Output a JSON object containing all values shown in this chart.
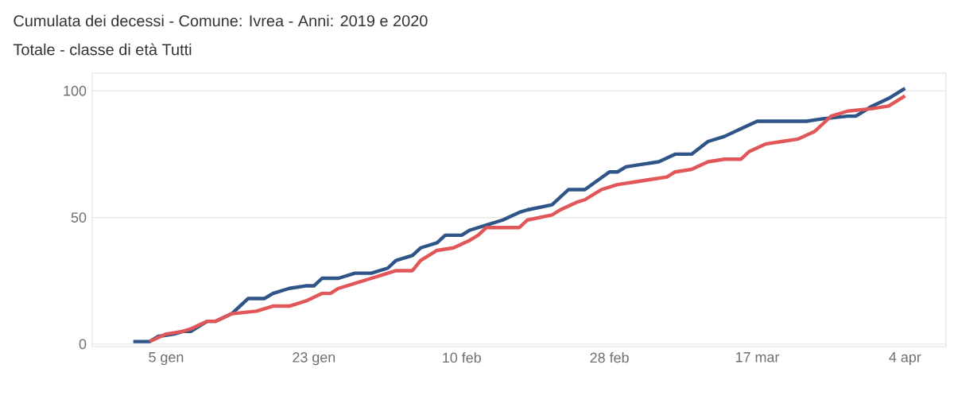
{
  "chart_data": {
    "type": "line",
    "title": "Cumulata dei decessi -  Comune: Ivrea  -  Anni: 2019 e 2020",
    "subtitle": "Totale - classe di età  Tutti",
    "series": [
      {
        "color": "#2f5487",
        "x": [
          "2020-01-01",
          "2020-01-03",
          "2020-01-04",
          "2020-01-06",
          "2020-01-07",
          "2020-01-08",
          "2020-01-10",
          "2020-01-11",
          "2020-01-13",
          "2020-01-15",
          "2020-01-17",
          "2020-01-18",
          "2020-01-20",
          "2020-01-22",
          "2020-01-23",
          "2020-01-24",
          "2020-01-26",
          "2020-01-28",
          "2020-01-30",
          "2020-02-01",
          "2020-02-02",
          "2020-02-04",
          "2020-02-05",
          "2020-02-07",
          "2020-02-08",
          "2020-02-10",
          "2020-02-11",
          "2020-02-13",
          "2020-02-15",
          "2020-02-17",
          "2020-02-18",
          "2020-02-21",
          "2020-02-23",
          "2020-02-25",
          "2020-02-28",
          "2020-02-29",
          "2020-03-01",
          "2020-03-03",
          "2020-03-05",
          "2020-03-07",
          "2020-03-09",
          "2020-03-11",
          "2020-03-13",
          "2020-03-15",
          "2020-03-17",
          "2020-03-21",
          "2020-03-23",
          "2020-03-25",
          "2020-03-28",
          "2020-03-29",
          "2020-03-31",
          "2020-04-02",
          "2020-04-03",
          "2020-04-04"
        ],
        "values": [
          1,
          1,
          3,
          4,
          5,
          5,
          9,
          9,
          12,
          18,
          18,
          20,
          22,
          23,
          23,
          26,
          26,
          28,
          28,
          30,
          33,
          35,
          38,
          40,
          43,
          43,
          45,
          47,
          49,
          52,
          53,
          55,
          61,
          61,
          68,
          68,
          70,
          71,
          72,
          75,
          75,
          80,
          82,
          85,
          88,
          88,
          88,
          89,
          90,
          90,
          94,
          97,
          99,
          101
        ]
      },
      {
        "color": "#e15759",
        "x": [
          "2020-01-03",
          "2020-01-05",
          "2020-01-07",
          "2020-01-08",
          "2020-01-10",
          "2020-01-11",
          "2020-01-13",
          "2020-01-16",
          "2020-01-18",
          "2020-01-20",
          "2020-01-22",
          "2020-01-24",
          "2020-01-25",
          "2020-01-26",
          "2020-01-28",
          "2020-01-30",
          "2020-01-31",
          "2020-02-02",
          "2020-02-04",
          "2020-02-05",
          "2020-02-07",
          "2020-02-09",
          "2020-02-11",
          "2020-02-12",
          "2020-02-13",
          "2020-02-17",
          "2020-02-18",
          "2020-02-21",
          "2020-02-22",
          "2020-02-24",
          "2020-02-25",
          "2020-02-27",
          "2020-02-29",
          "2020-03-02",
          "2020-03-04",
          "2020-03-06",
          "2020-03-07",
          "2020-03-09",
          "2020-03-11",
          "2020-03-13",
          "2020-03-15",
          "2020-03-16",
          "2020-03-18",
          "2020-03-20",
          "2020-03-22",
          "2020-03-24",
          "2020-03-26",
          "2020-03-28",
          "2020-03-31",
          "2020-04-02",
          "2020-04-04"
        ],
        "values": [
          1,
          4,
          5,
          6,
          9,
          9,
          12,
          13,
          15,
          15,
          17,
          20,
          20,
          22,
          24,
          26,
          27,
          29,
          29,
          33,
          37,
          38,
          41,
          43,
          46,
          46,
          49,
          51,
          53,
          56,
          57,
          61,
          63,
          64,
          65,
          66,
          68,
          69,
          72,
          73,
          73,
          76,
          79,
          80,
          81,
          84,
          90,
          92,
          93,
          94,
          98
        ]
      }
    ],
    "xlim": [
      "2019-12-27",
      "2020-04-09"
    ],
    "xticks": [
      {
        "value": "2020-01-05",
        "label": "5 gen"
      },
      {
        "value": "2020-01-23",
        "label": "23 gen"
      },
      {
        "value": "2020-02-10",
        "label": "10 feb"
      },
      {
        "value": "2020-02-28",
        "label": "28 feb"
      },
      {
        "value": "2020-03-17",
        "label": "17 mar"
      },
      {
        "value": "2020-04-04",
        "label": "4 apr"
      }
    ],
    "ylim": [
      -1,
      107
    ],
    "yticks": [
      0,
      50,
      100
    ],
    "grid": "y"
  }
}
